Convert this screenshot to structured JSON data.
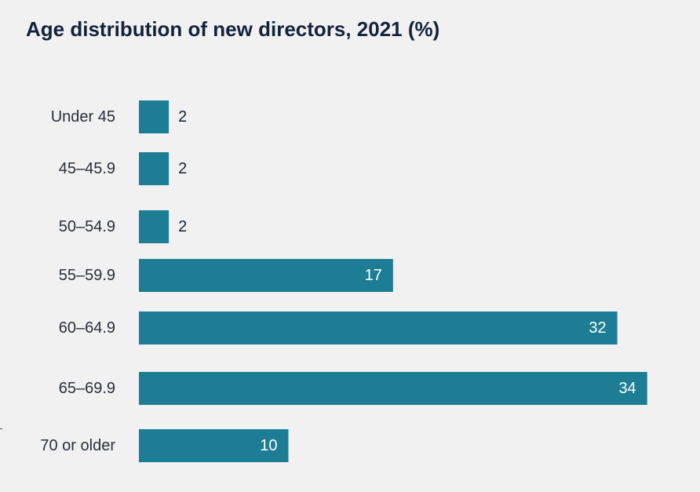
{
  "chart_data": {
    "type": "bar",
    "orientation": "horizontal",
    "title": "Age distribution of new directors, 2021 (%)",
    "categories": [
      "Under 45",
      "45–45.9",
      "50–54.9",
      "55–59.9",
      "60–64.9",
      "65–69.9",
      "70 or older"
    ],
    "values": [
      2,
      2,
      2,
      17,
      32,
      34,
      10
    ],
    "value_labels": [
      "2",
      "2",
      "2",
      "17",
      "32",
      "34",
      "10"
    ],
    "xlabel": "",
    "ylabel": "",
    "grid": false,
    "legend": "none",
    "colors": {
      "bar": "#1c7d94",
      "label_inside": "#ffffff",
      "label_outside": "#14233c",
      "category_text": "#2a2f3a",
      "title": "#14233c",
      "background": "#f1f1f1"
    }
  }
}
